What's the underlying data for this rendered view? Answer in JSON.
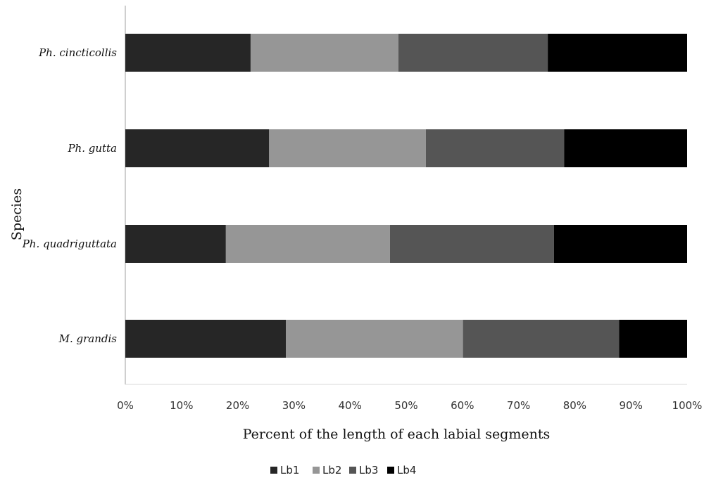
{
  "chart_data": {
    "type": "bar",
    "orientation": "horizontal",
    "stacked": "percent",
    "title": "",
    "xlabel": "Percent of the length of each labial segments",
    "ylabel": "Species",
    "xlim": [
      0,
      100
    ],
    "x_ticks": [
      "0%",
      "10%",
      "20%",
      "30%",
      "40%",
      "50%",
      "60%",
      "70%",
      "80%",
      "90%",
      "100%"
    ],
    "categories": [
      "Ph. cincticollis",
      "Ph. gutta",
      "Ph. quadriguttata",
      "M. grandis"
    ],
    "series": [
      {
        "name": "Lb1",
        "color": "#262626",
        "values": [
          22.3,
          25.6,
          17.9,
          28.6
        ]
      },
      {
        "name": "Lb2",
        "color": "#969696",
        "values": [
          26.3,
          27.9,
          29.2,
          31.5
        ]
      },
      {
        "name": "Lb3",
        "color": "#555555",
        "values": [
          26.6,
          24.6,
          29.2,
          27.8
        ]
      },
      {
        "name": "Lb4",
        "color": "#000000",
        "values": [
          24.8,
          21.9,
          23.7,
          12.1
        ]
      }
    ],
    "legend_position": "bottom",
    "grid": false
  }
}
